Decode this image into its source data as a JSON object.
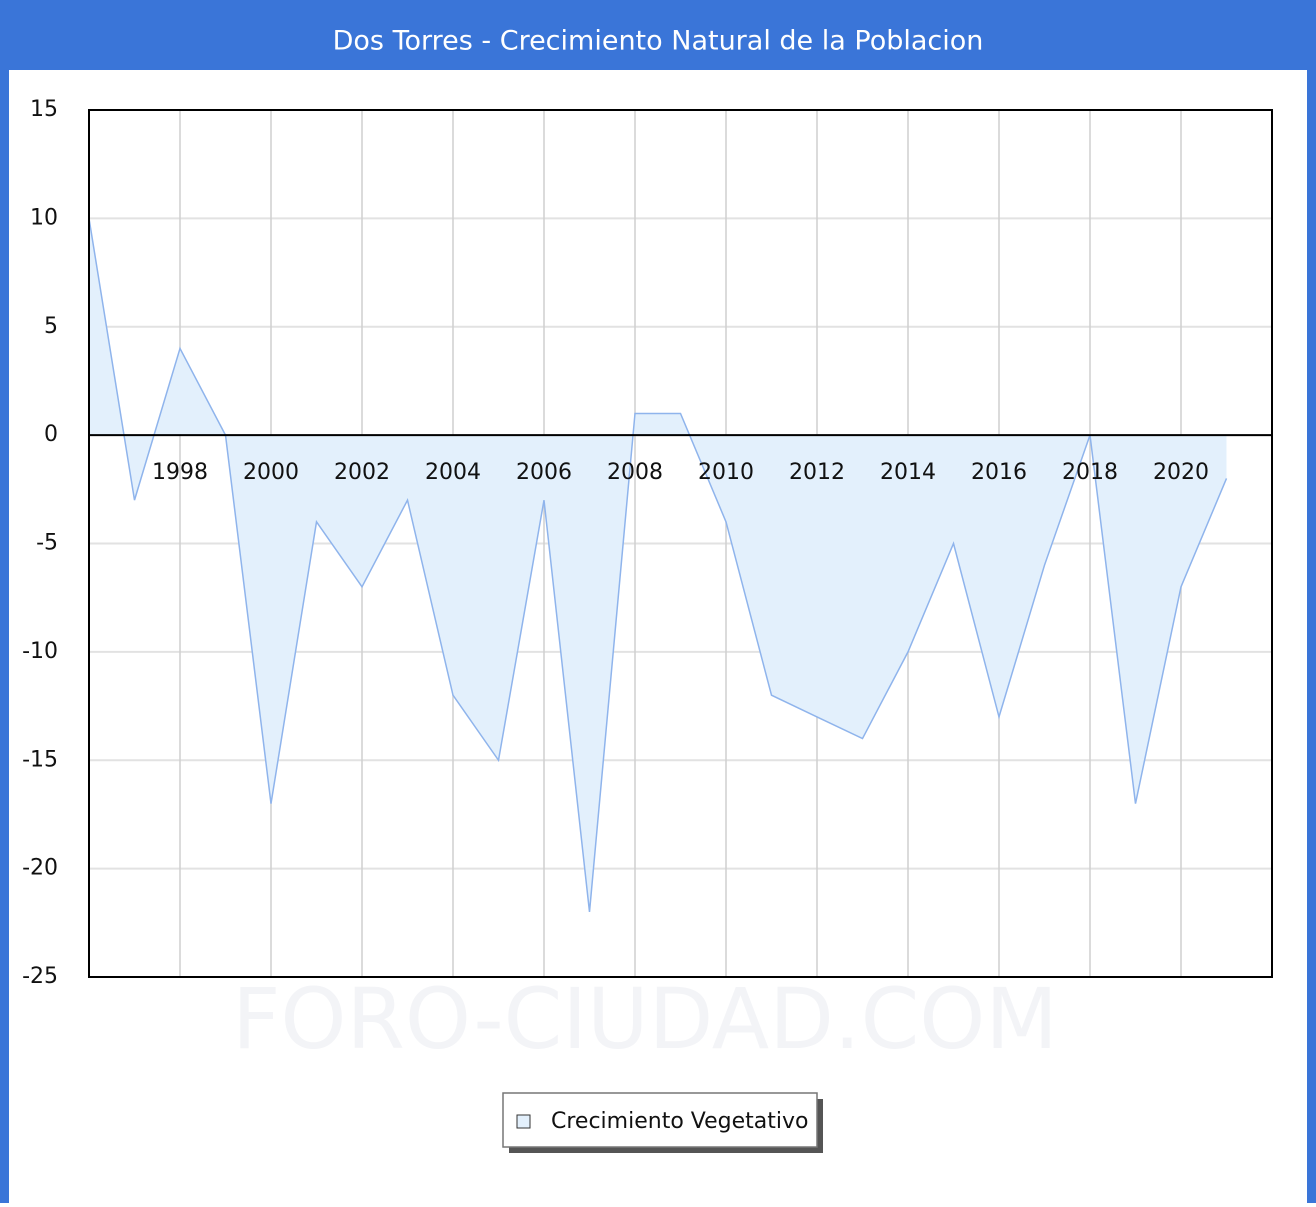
{
  "chart_data": {
    "type": "area",
    "title": "Dos Torres - Crecimiento Natural de la Poblacion",
    "watermark": "FORO-CIUDAD.COM",
    "x": [
      1996,
      1997,
      1998,
      1999,
      2000,
      2001,
      2002,
      2003,
      2004,
      2005,
      2006,
      2007,
      2008,
      2009,
      2010,
      2011,
      2012,
      2013,
      2014,
      2015,
      2016,
      2017,
      2018,
      2019,
      2020,
      2021
    ],
    "series": [
      {
        "name": "Crecimiento Vegetativo",
        "color": "#8fb4ec",
        "fill": "#e3f0fc",
        "values": [
          10,
          -3,
          4,
          0,
          -17,
          -4,
          -7,
          -3,
          -12,
          -15,
          -3,
          -22,
          1,
          1,
          -4,
          -12,
          -13,
          -14,
          -10,
          -5,
          -13,
          -6,
          0,
          -17,
          -7,
          -2
        ]
      }
    ],
    "xlim": [
      1996,
      2022
    ],
    "xticks": [
      1998,
      2000,
      2002,
      2004,
      2006,
      2008,
      2010,
      2012,
      2014,
      2016,
      2018,
      2020
    ],
    "ylim": [
      -25,
      15
    ],
    "yticks": [
      -25,
      -20,
      -15,
      -10,
      -5,
      0,
      5,
      10,
      15
    ],
    "grid": true,
    "legend": "bottom"
  }
}
